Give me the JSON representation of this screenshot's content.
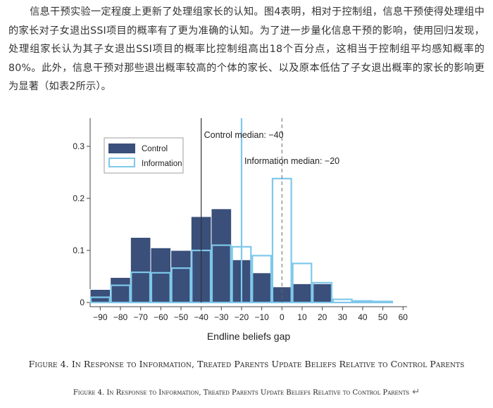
{
  "paragraph": "信息干预实验一定程度上更新了处理组家长的认知。图4表明，相对于控制组，信息干预使得处理组中的家长对子女退出SSI项目的概率有了更为准确的认知。为了进一步量化信息干预的影响，使用回归发现，处理组家长认为其子女退出SSI项目的概率比控制组高出18个百分点，这相当于控制组平均感知概率的80%。此外，信息干预对那些退出概率较高的个体的家长、以及原本低估了子女退出概率的家长的影响更为显著（如表2所示）。",
  "caption_main": "Figure 4. In Response to Information, Treated Parents Update Beliefs Relative to Control Parents",
  "caption_secondary": "Figure 4. In Response to Information, Treated Parents Update Beliefs Relative to Control Parents",
  "return_mark": "↵",
  "colors": {
    "control": "#3a4f7a",
    "information": "#7ec8ea",
    "axis": "#444444"
  },
  "chart_data": {
    "type": "bar",
    "xlabel": "Endline beliefs gap",
    "ylabel": "",
    "xlim": [
      -95,
      62
    ],
    "ylim": [
      0,
      0.35
    ],
    "xticks": [
      -90,
      -80,
      -70,
      -60,
      -50,
      -40,
      -30,
      -20,
      -10,
      0,
      10,
      20,
      30,
      40,
      50,
      60
    ],
    "xtick_labels": [
      "−90",
      "−80",
      "−70",
      "−60",
      "−50",
      "−40",
      "−30",
      "−20",
      "−10",
      "0",
      "10",
      "20",
      "30",
      "40",
      "50",
      "60"
    ],
    "yticks": [
      0,
      0.1,
      0.2,
      0.3
    ],
    "ytick_labels": [
      "0",
      "0.1",
      "0.2",
      "0.3"
    ],
    "bin_width": 10,
    "series": [
      {
        "name": "Control",
        "bin_starts": [
          -95,
          -85,
          -75,
          -65,
          -55,
          -45,
          -35,
          -25,
          -15,
          -5,
          5,
          15
        ],
        "values": [
          0.025,
          0.048,
          0.125,
          0.105,
          0.1,
          0.165,
          0.18,
          0.082,
          0.057,
          0.03,
          0.036,
          0.036
        ]
      },
      {
        "name": "Information",
        "bin_starts": [
          -95,
          -85,
          -75,
          -65,
          -55,
          -45,
          -35,
          -25,
          -15,
          -5,
          5,
          15,
          25,
          35,
          45
        ],
        "values": [
          0.01,
          0.033,
          0.058,
          0.057,
          0.066,
          0.1,
          0.11,
          0.107,
          0.09,
          0.238,
          0.075,
          0.038,
          0.006,
          0.003,
          0.002
        ]
      }
    ],
    "legend": {
      "placement": "top-left",
      "entries": [
        "Control",
        "Information"
      ]
    },
    "annotations": [
      {
        "text": "Control median: −40",
        "x": -40
      },
      {
        "text": "Information median: −20",
        "x": -20
      }
    ],
    "reference_lines": [
      {
        "x": -40,
        "style": "solid",
        "series": "Control"
      },
      {
        "x": -20,
        "style": "solid",
        "series": "Information"
      },
      {
        "x": 0,
        "style": "dashed"
      }
    ],
    "grid": false
  }
}
